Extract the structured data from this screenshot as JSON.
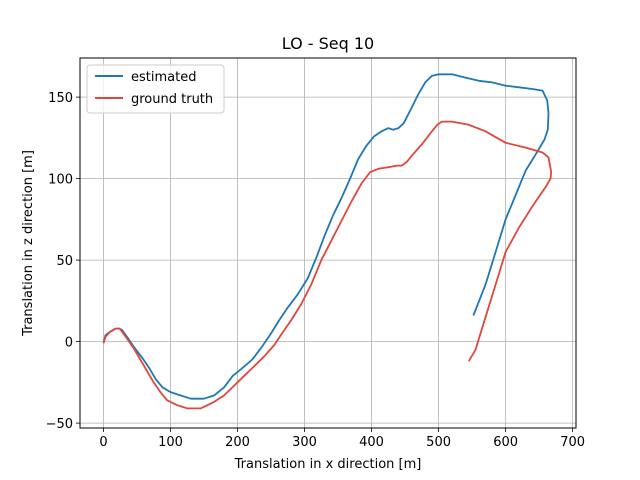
{
  "chart_data": {
    "type": "line",
    "title": "LO - Seq 10",
    "xlabel": "Translation in x direction [m]",
    "ylabel": "Translation in z direction [m]",
    "xlim": [
      -35,
      705
    ],
    "ylim": [
      -53,
      174
    ],
    "xticks": [
      0,
      100,
      200,
      300,
      400,
      500,
      600,
      700
    ],
    "yticks": [
      -50,
      0,
      50,
      100,
      150
    ],
    "grid": true,
    "legend_position": "upper-left",
    "series": [
      {
        "name": "estimated",
        "color": "#1f77b4",
        "x": [
          0,
          3,
          10,
          18,
          24,
          28,
          35,
          45,
          58,
          68,
          78,
          88,
          100,
          115,
          130,
          150,
          165,
          180,
          193,
          205,
          222,
          235,
          250,
          262,
          275,
          290,
          305,
          318,
          330,
          342,
          355,
          368,
          380,
          392,
          404,
          415,
          425,
          432,
          440,
          448,
          458,
          470,
          480,
          490,
          500,
          520,
          540,
          560,
          580,
          600,
          620,
          640,
          655,
          662,
          664,
          663,
          658,
          645,
          630,
          615,
          600,
          585,
          570,
          552
        ],
        "y": [
          -1,
          4,
          6,
          8,
          8,
          7,
          3,
          -3,
          -10,
          -16,
          -23,
          -28,
          -31,
          -33,
          -35,
          -35,
          -33,
          -28,
          -21,
          -17,
          -11,
          -4,
          5,
          13,
          21,
          29,
          39,
          52,
          65,
          77,
          88,
          100,
          112,
          120,
          126,
          129,
          131,
          130,
          131,
          134,
          142,
          152,
          159,
          163,
          164,
          164,
          162,
          160,
          159,
          157,
          156,
          155,
          154,
          148,
          140,
          130,
          124,
          115,
          105,
          90,
          75,
          55,
          35,
          16
        ]
      },
      {
        "name": "ground truth",
        "color": "#e0473a",
        "x": [
          0,
          3,
          10,
          18,
          24,
          28,
          35,
          45,
          55,
          65,
          75,
          85,
          95,
          110,
          125,
          145,
          165,
          180,
          195,
          210,
          225,
          240,
          255,
          268,
          280,
          295,
          310,
          325,
          340,
          355,
          370,
          385,
          398,
          410,
          425,
          438,
          445,
          452,
          462,
          475,
          488,
          498,
          505,
          520,
          545,
          570,
          600,
          630,
          655,
          664,
          668,
          667,
          660,
          640,
          620,
          600,
          585,
          570,
          555,
          545
        ],
        "y": [
          -1,
          3,
          6,
          8,
          8,
          6,
          2,
          -4,
          -11,
          -18,
          -25,
          -31,
          -36,
          -39,
          -41,
          -41,
          -37,
          -33,
          -27,
          -21,
          -15,
          -9,
          -2,
          6,
          13,
          23,
          35,
          50,
          62,
          74,
          86,
          97,
          104,
          106,
          107,
          108,
          108,
          110,
          115,
          121,
          128,
          133,
          135,
          135,
          133,
          129,
          122,
          119,
          116,
          113,
          104,
          100,
          95,
          83,
          70,
          55,
          35,
          15,
          -5,
          -12
        ]
      }
    ]
  }
}
